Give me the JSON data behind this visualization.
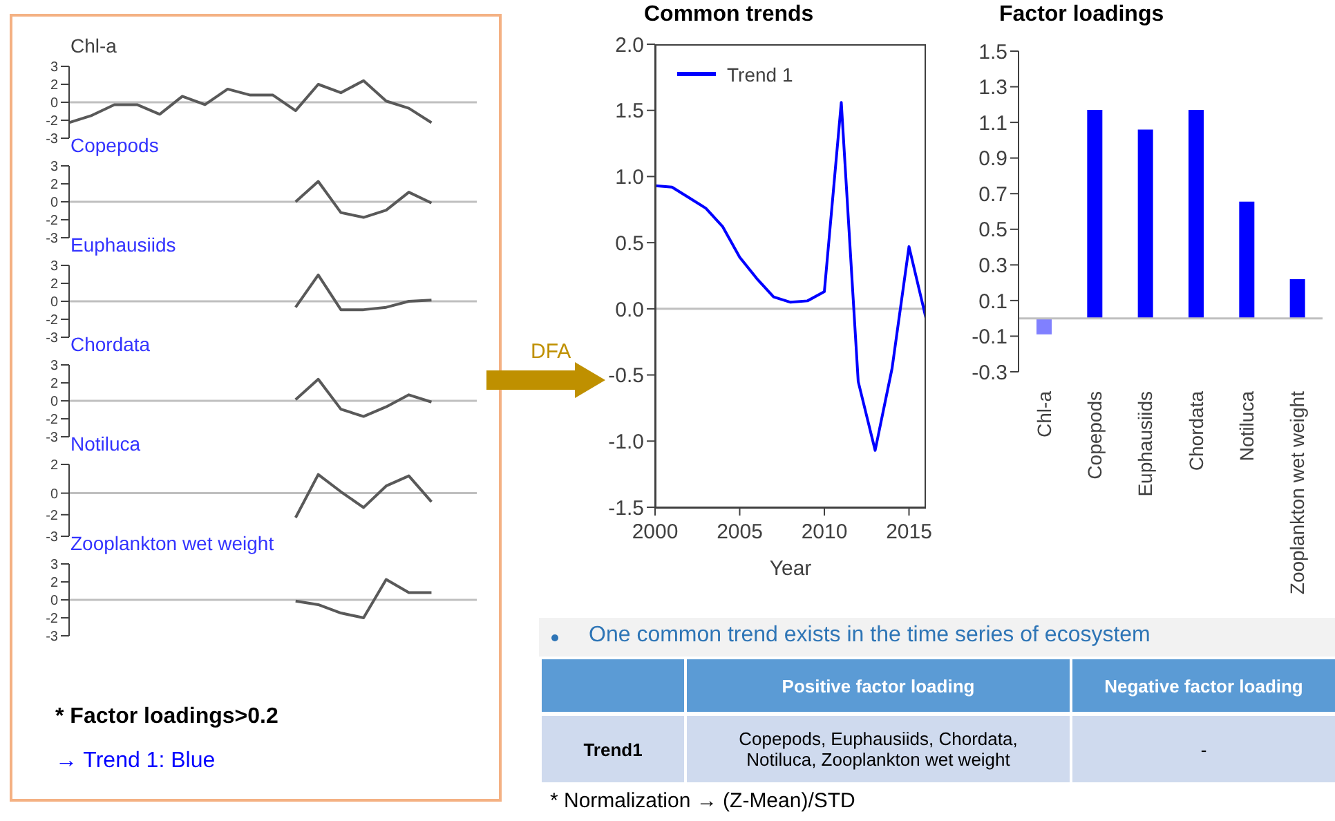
{
  "chart_data": [
    {
      "type": "line",
      "title": "Chl-a",
      "categories": [
        null,
        null,
        null,
        null,
        null,
        null,
        null,
        null,
        null,
        null,
        null,
        null,
        null,
        null,
        null,
        null,
        null,
        null,
        null
      ],
      "values": [
        -1.7,
        -1.1,
        -0.2,
        -0.2,
        -1.0,
        0.5,
        -0.2,
        1.1,
        0.6,
        0.6,
        -0.7,
        1.5,
        0.8,
        1.8,
        0.1,
        -0.5,
        -1.7,
        null,
        null
      ],
      "color": "#595959",
      "ylim": [
        -3,
        3
      ],
      "yticks": [
        3,
        {
          "value": 1.5,
          "label": "2"
        },
        0,
        {
          "value": -1.5,
          "label": "-2"
        },
        -3
      ],
      "tick_labels": "y",
      "marker": "none",
      "ref_lines": [
        {
          "axis": "y",
          "value": 0
        }
      ]
    },
    {
      "type": "line",
      "title": "Copepods",
      "categories": [
        null,
        null,
        null,
        null,
        null,
        null,
        null,
        null,
        null,
        null,
        null,
        null,
        null,
        null,
        null,
        null,
        null,
        null,
        null
      ],
      "values": [
        null,
        null,
        null,
        null,
        null,
        null,
        null,
        null,
        null,
        null,
        0,
        1.7,
        -0.9,
        -1.3,
        -0.7,
        0.8,
        -0.1,
        null,
        null
      ],
      "color": "#595959",
      "ylim": [
        -3,
        3
      ],
      "yticks": [
        3,
        {
          "value": 1.5,
          "label": "2"
        },
        0,
        {
          "value": -1.5,
          "label": "-2"
        },
        -3
      ],
      "tick_labels": "y",
      "marker": "none",
      "ref_lines": [
        {
          "axis": "y",
          "value": 0
        }
      ]
    },
    {
      "type": "line",
      "title": "Euphausiids",
      "categories": [
        null,
        null,
        null,
        null,
        null,
        null,
        null,
        null,
        null,
        null,
        null,
        null,
        null,
        null,
        null,
        null,
        null,
        null,
        null
      ],
      "values": [
        null,
        null,
        null,
        null,
        null,
        null,
        null,
        null,
        null,
        null,
        -0.5,
        2.2,
        -0.7,
        -0.7,
        -0.5,
        0.0,
        0.1,
        null,
        null
      ],
      "color": "#595959",
      "ylim": [
        -3,
        3
      ],
      "yticks": [
        3,
        {
          "value": 1.5,
          "label": "2"
        },
        0,
        {
          "value": -1.5,
          "label": "-2"
        },
        -3
      ],
      "tick_labels": "y",
      "marker": "none",
      "ref_lines": [
        {
          "axis": "y",
          "value": 0
        }
      ]
    },
    {
      "type": "line",
      "title": "Chordata",
      "categories": [
        null,
        null,
        null,
        null,
        null,
        null,
        null,
        null,
        null,
        null,
        null,
        null,
        null,
        null,
        null,
        null,
        null,
        null,
        null
      ],
      "values": [
        null,
        null,
        null,
        null,
        null,
        null,
        null,
        null,
        null,
        null,
        0.1,
        1.8,
        -0.7,
        -1.3,
        -0.5,
        0.5,
        -0.1,
        null,
        null
      ],
      "color": "#595959",
      "ylim": [
        -3,
        3
      ],
      "yticks": [
        3,
        {
          "value": 1.5,
          "label": "2"
        },
        0,
        {
          "value": -1.5,
          "label": "-2"
        },
        -3
      ],
      "tick_labels": "y",
      "marker": "none",
      "ref_lines": [
        {
          "axis": "y",
          "value": 0
        }
      ]
    },
    {
      "type": "line",
      "title": "Notiluca",
      "categories": [
        null,
        null,
        null,
        null,
        null,
        null,
        null,
        null,
        null,
        null,
        null,
        null,
        null,
        null,
        null,
        null,
        null,
        null,
        null
      ],
      "values": [
        null,
        null,
        null,
        null,
        null,
        null,
        null,
        null,
        null,
        null,
        -1.7,
        1.3,
        0.1,
        -1.0,
        0.5,
        1.2,
        -0.6,
        null,
        null
      ],
      "color": "#595959",
      "ylim": [
        -3,
        2
      ],
      "yticks": [
        2,
        0,
        {
          "value": -1.5,
          "label": "-2"
        },
        -3
      ],
      "tick_labels": "y",
      "marker": "none",
      "ref_lines": [
        {
          "axis": "y",
          "value": 0
        }
      ]
    },
    {
      "type": "line",
      "title": "Zooplankton wet weight",
      "categories": [
        null,
        null,
        null,
        null,
        null,
        null,
        null,
        null,
        null,
        null,
        null,
        null,
        null,
        null,
        null,
        null,
        null,
        null,
        null
      ],
      "values": [
        null,
        null,
        null,
        null,
        null,
        null,
        null,
        null,
        null,
        null,
        -0.1,
        -0.4,
        -1.1,
        -1.5,
        1.7,
        0.6,
        0.6,
        null,
        null
      ],
      "color": "#595959",
      "ylim": [
        -3,
        3
      ],
      "yticks": [
        3,
        {
          "value": 1.5,
          "label": "2"
        },
        0,
        {
          "value": -1.5,
          "label": "-2"
        },
        -3
      ],
      "tick_labels": "y",
      "marker": "none",
      "ref_lines": [
        {
          "axis": "y",
          "value": 0
        }
      ]
    },
    {
      "type": "line",
      "title": "Common trends",
      "xlabel": "Year",
      "x": [
        2000,
        2001,
        2002,
        2003,
        2004,
        2005,
        2006,
        2007,
        2008,
        2009,
        2010,
        2011,
        2012,
        2013,
        2014,
        2015,
        2016
      ],
      "series": [
        {
          "name": "Trend 1",
          "color": "#0000ff",
          "values": [
            0.93,
            0.92,
            0.84,
            0.76,
            0.62,
            0.39,
            0.23,
            0.09,
            0.05,
            0.06,
            0.13,
            1.56,
            -0.55,
            -1.07,
            -0.45,
            0.47,
            -0.07
          ]
        }
      ],
      "xlim": [
        2000,
        2016
      ],
      "xticks": [
        2000,
        2005,
        2010,
        2015
      ],
      "ylim": [
        -1.5,
        2
      ],
      "yticks": [
        {
          "value": 2,
          "label": "2.0"
        },
        {
          "value": 1.5,
          "label": "1.5"
        },
        {
          "value": 1,
          "label": "1.0"
        },
        {
          "value": 0.5,
          "label": "0.5"
        },
        {
          "value": 0,
          "label": "0.0"
        },
        {
          "value": -0.5,
          "label": "-0.5"
        },
        {
          "value": -1,
          "label": "-1.0"
        },
        {
          "value": -1.5,
          "label": "-1.5"
        }
      ],
      "legend": "top left",
      "marker": "none",
      "ref_lines": [
        {
          "axis": "y",
          "value": 0
        }
      ]
    },
    {
      "type": "bar",
      "title": "Factor loadings",
      "categories": [
        "Chl-a",
        "Copepods",
        "Euphausiids",
        "Chordata",
        "Notiluca",
        "Zooplankton wet weight"
      ],
      "values": [
        -0.09,
        1.17,
        1.06,
        1.17,
        0.655,
        0.22
      ],
      "colors": [
        "#8080ff",
        "#0000ff",
        "#0000ff",
        "#0000ff",
        "#0000ff",
        "#0000ff"
      ],
      "ylim": [
        -0.3,
        1.5
      ],
      "yticks": [
        1.5,
        1.3,
        1.1,
        0.9,
        0.7,
        0.5,
        0.3,
        0.1,
        -0.1,
        -0.3
      ],
      "ref_lines": [
        {
          "axis": "y",
          "value": 0
        }
      ]
    },
    {
      "type": "other",
      "annotations": [
        "* Factor loadings>0.2",
        "→ Trend 1: Blue",
        "DFA",
        "One common trend exists in the time series of ecosystem",
        "Positive factor loading",
        "Negative factor loading",
        "Trend1",
        "Copepods, Euphausiids, Chordata, Notiluca, Zooplankton wet weight",
        "-",
        "* Normalization → (Z-Mean)/STD"
      ]
    }
  ]
}
